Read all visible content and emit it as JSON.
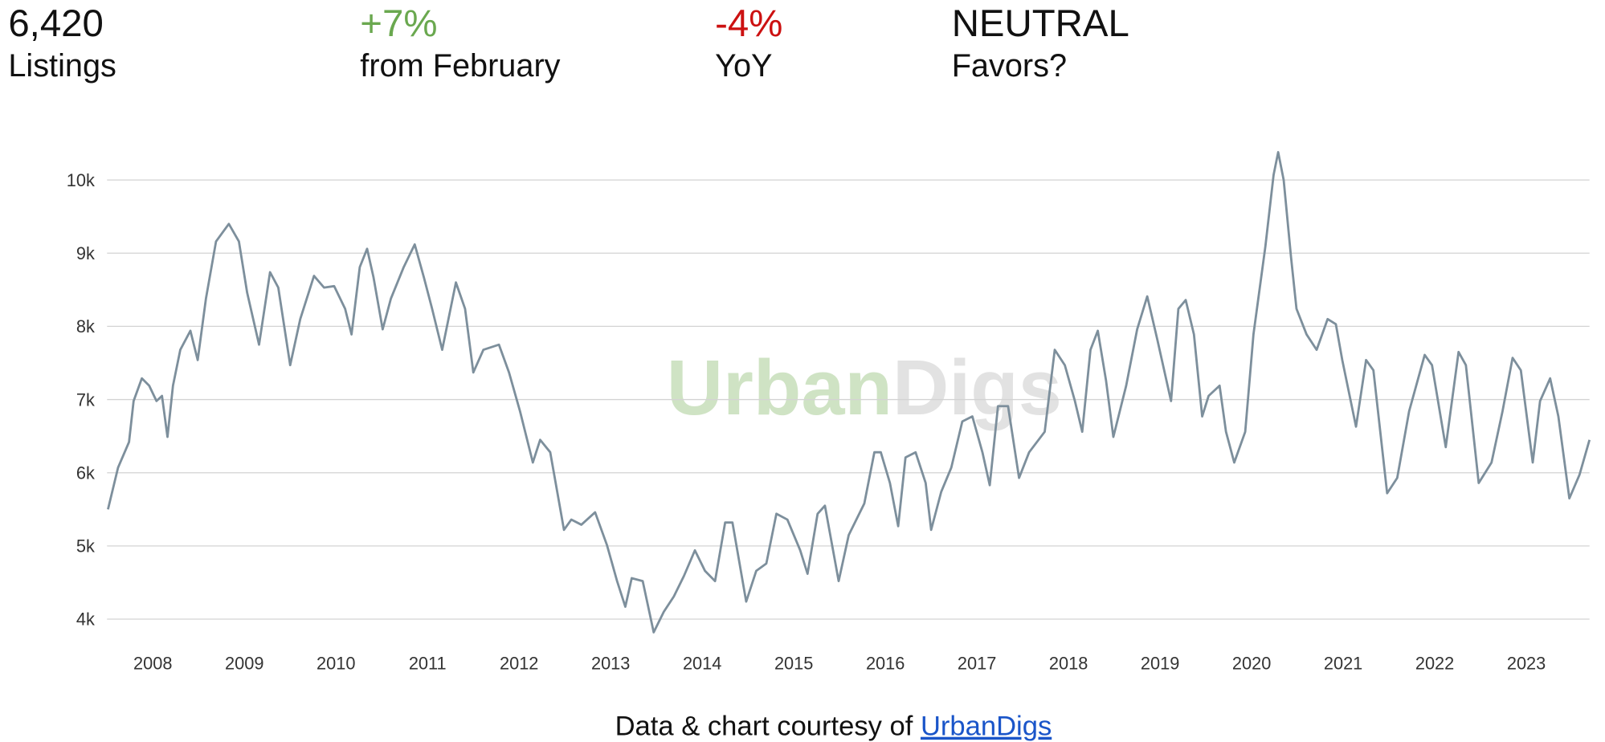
{
  "stats": [
    {
      "value": "6,420",
      "label": "Listings",
      "color": "#111111"
    },
    {
      "value": "+7%",
      "label": "from February",
      "color": "#6aa84f"
    },
    {
      "value": "-4%",
      "label": "YoY",
      "color": "#cc1111"
    },
    {
      "value": "NEUTRAL",
      "label": "Favors?",
      "color": "#111111"
    }
  ],
  "watermark": {
    "parts": [
      "Urban",
      "Digs"
    ],
    "colors": [
      "#cfe3c4",
      "#e2e2e2"
    ]
  },
  "footer": {
    "text": "Data & chart courtesy of ",
    "link": "UrbanDigs"
  },
  "chart_data": {
    "type": "line",
    "x": [
      2008.01,
      2008.12,
      2008.24,
      2008.29,
      2008.38,
      2008.46,
      2008.54,
      2008.6,
      2008.66,
      2008.72,
      2008.8,
      2008.91,
      2008.99,
      2009.08,
      2009.19,
      2009.33,
      2009.44,
      2009.53,
      2009.66,
      2009.78,
      2009.87,
      2010.0,
      2010.11,
      2010.26,
      2010.37,
      2010.48,
      2010.6,
      2010.67,
      2010.76,
      2010.84,
      2010.91,
      2011.01,
      2011.1,
      2011.24,
      2011.36,
      2011.46,
      2011.55,
      2011.66,
      2011.81,
      2011.91,
      2012.0,
      2012.11,
      2012.28,
      2012.39,
      2012.51,
      2012.65,
      2012.73,
      2012.84,
      2012.99,
      2013.07,
      2013.18,
      2013.33,
      2013.46,
      2013.57,
      2013.66,
      2013.73,
      2013.85,
      2013.97,
      2014.08,
      2014.19,
      2014.3,
      2014.42,
      2014.53,
      2014.64,
      2014.75,
      2014.83,
      2014.98,
      2015.09,
      2015.2,
      2015.31,
      2015.43,
      2015.57,
      2015.65,
      2015.76,
      2015.84,
      2015.99,
      2016.1,
      2016.27,
      2016.38,
      2016.45,
      2016.55,
      2016.64,
      2016.72,
      2016.83,
      2016.94,
      2017.0,
      2017.11,
      2017.22,
      2017.34,
      2017.45,
      2017.56,
      2017.64,
      2017.73,
      2017.84,
      2017.96,
      2018.07,
      2018.24,
      2018.35,
      2018.46,
      2018.57,
      2018.65,
      2018.74,
      2018.82,
      2018.91,
      2018.99,
      2019.13,
      2019.25,
      2019.36,
      2019.47,
      2019.62,
      2019.7,
      2019.78,
      2019.87,
      2019.96,
      2020.03,
      2020.15,
      2020.22,
      2020.31,
      2020.43,
      2020.52,
      2020.65,
      2020.74,
      2020.79,
      2020.85,
      2020.93,
      2020.99,
      2021.1,
      2021.21,
      2021.33,
      2021.42,
      2021.49,
      2021.64,
      2021.75,
      2021.83,
      2021.98,
      2022.09,
      2022.22,
      2022.39,
      2022.47,
      2022.62,
      2022.76,
      2022.84,
      2022.98,
      2023.12,
      2023.24,
      2023.35,
      2023.44,
      2023.57,
      2023.65,
      2023.76,
      2023.85,
      2023.97,
      2024.08,
      2024.19
    ],
    "series": [
      {
        "name": "Listings",
        "color": "#7d8f9c",
        "values": [
          5500,
          6070,
          6420,
          6980,
          7290,
          7190,
          6980,
          7050,
          6490,
          7190,
          7680,
          7940,
          7540,
          8380,
          9160,
          9400,
          9160,
          8460,
          7750,
          8740,
          8530,
          7470,
          8100,
          8690,
          8530,
          8550,
          8240,
          7890,
          8810,
          9060,
          8670,
          7960,
          8380,
          8810,
          9120,
          8670,
          8240,
          7680,
          8600,
          8240,
          7370,
          7680,
          7750,
          7370,
          6840,
          6140,
          6450,
          6280,
          5220,
          5360,
          5290,
          5460,
          5010,
          4520,
          4170,
          4560,
          4520,
          3820,
          4100,
          4310,
          4590,
          4940,
          4660,
          4520,
          5320,
          5320,
          4240,
          4660,
          4760,
          5440,
          5360,
          4940,
          4620,
          5440,
          5550,
          4520,
          5150,
          5580,
          6280,
          6280,
          5860,
          5270,
          6210,
          6280,
          5860,
          5220,
          5740,
          6070,
          6700,
          6770,
          6280,
          5830,
          6910,
          6910,
          5930,
          6280,
          6560,
          7680,
          7470,
          6980,
          6560,
          7680,
          7940,
          7260,
          6490,
          7190,
          7960,
          8410,
          7820,
          6980,
          8240,
          8360,
          7890,
          6770,
          7050,
          7190,
          6560,
          6140,
          6560,
          7890,
          9090,
          10070,
          10380,
          10000,
          8950,
          8240,
          7890,
          7680,
          8100,
          8030,
          7540,
          6630,
          7540,
          7400,
          5720,
          5930,
          6840,
          7610,
          7470,
          6350,
          7650,
          7470,
          5860,
          6140,
          6840,
          7570,
          7400,
          6140,
          6980,
          7290,
          6770,
          5650,
          5970,
          6450
        ]
      }
    ],
    "xlim": [
      2008,
      2024.19
    ],
    "xticks": [
      {
        "value": 2008.5,
        "label": "2008"
      },
      {
        "value": 2009.5,
        "label": "2009"
      },
      {
        "value": 2010.5,
        "label": "2010"
      },
      {
        "value": 2011.5,
        "label": "2011"
      },
      {
        "value": 2012.5,
        "label": "2012"
      },
      {
        "value": 2013.5,
        "label": "2013"
      },
      {
        "value": 2014.5,
        "label": "2014"
      },
      {
        "value": 2015.5,
        "label": "2015"
      },
      {
        "value": 2016.5,
        "label": "2016"
      },
      {
        "value": 2017.5,
        "label": "2017"
      },
      {
        "value": 2018.5,
        "label": "2018"
      },
      {
        "value": 2019.5,
        "label": "2019"
      },
      {
        "value": 2020.5,
        "label": "2020"
      },
      {
        "value": 2021.5,
        "label": "2021"
      },
      {
        "value": 2022.5,
        "label": "2022"
      },
      {
        "value": 2023.5,
        "label": "2023"
      }
    ],
    "ylim": [
      3700,
      10600
    ],
    "yticks": [
      {
        "value": 4000,
        "label": "4k"
      },
      {
        "value": 5000,
        "label": "5k"
      },
      {
        "value": 6000,
        "label": "6k"
      },
      {
        "value": 7000,
        "label": "7k"
      },
      {
        "value": 8000,
        "label": "8k"
      },
      {
        "value": 9000,
        "label": "9k"
      },
      {
        "value": 10000,
        "label": "10k"
      }
    ],
    "grid": true
  }
}
